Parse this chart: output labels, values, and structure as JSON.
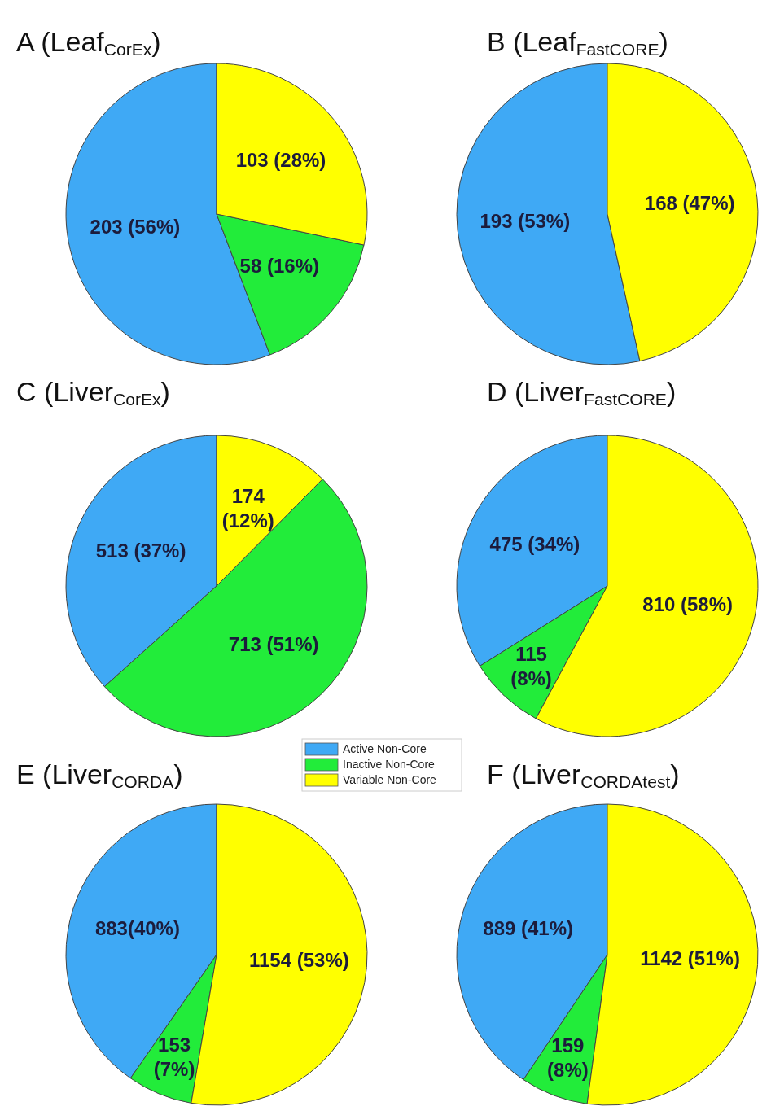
{
  "chart_data": [
    {
      "type": "pie",
      "title": "A (Leaf$_{CorEx}$)",
      "categories": [
        null,
        null,
        null
      ],
      "values": [
        203,
        58,
        103
      ],
      "colors": [
        "#3fa9f5",
        "#22ec3a",
        "#ffff00"
      ],
      "value_labels": [
        "203 (56%)",
        "58 (16%)",
        "103 (28%)"
      ]
    },
    {
      "type": "pie",
      "title": "B (Leaf$_{FastCORE}$)",
      "categories": [
        null,
        null
      ],
      "values": [
        193,
        168
      ],
      "colors": [
        "#3fa9f5",
        "#ffff00"
      ],
      "value_labels": [
        "193 (53%)",
        "168 (47%)"
      ]
    },
    {
      "type": "pie",
      "title": "C (Liver$_{CorEx}$)",
      "categories": [
        null,
        null,
        null
      ],
      "values": [
        513,
        713,
        174
      ],
      "colors": [
        "#3fa9f5",
        "#22ec3a",
        "#ffff00"
      ],
      "value_labels": [
        "513 (37%)",
        "713 (51%)",
        "174\n(12%)"
      ]
    },
    {
      "type": "pie",
      "title": "D (Liver$_{FastCORE}$)",
      "categories": [
        null,
        null,
        null
      ],
      "values": [
        475,
        115,
        810
      ],
      "colors": [
        "#3fa9f5",
        "#22ec3a",
        "#ffff00"
      ],
      "value_labels": [
        "475 (34%)",
        "115\n(8%)",
        "810 (58%)"
      ]
    },
    {
      "type": "pie",
      "title": "E (Liver$_{CORDA}$)",
      "categories": [
        "Active Non-Core",
        "Inactive Non-Core",
        "Variable Non-Core"
      ],
      "values": [
        883,
        153,
        1154
      ],
      "colors": [
        "#3fa9f5",
        "#22ec3a",
        "#ffff00"
      ],
      "value_labels": [
        "883(40%)",
        "153\n(7%)",
        "1154 (53%)"
      ],
      "legend": "top right"
    },
    {
      "type": "pie",
      "title": "F (Liver$_{CORDAtest}$)",
      "categories": [
        null,
        null,
        null
      ],
      "values": [
        889,
        159,
        1142
      ],
      "colors": [
        "#3fa9f5",
        "#22ec3a",
        "#ffff00"
      ],
      "value_labels": [
        "889 (41%)",
        "159\n(8%)",
        "1142 (51%)"
      ]
    }
  ]
}
